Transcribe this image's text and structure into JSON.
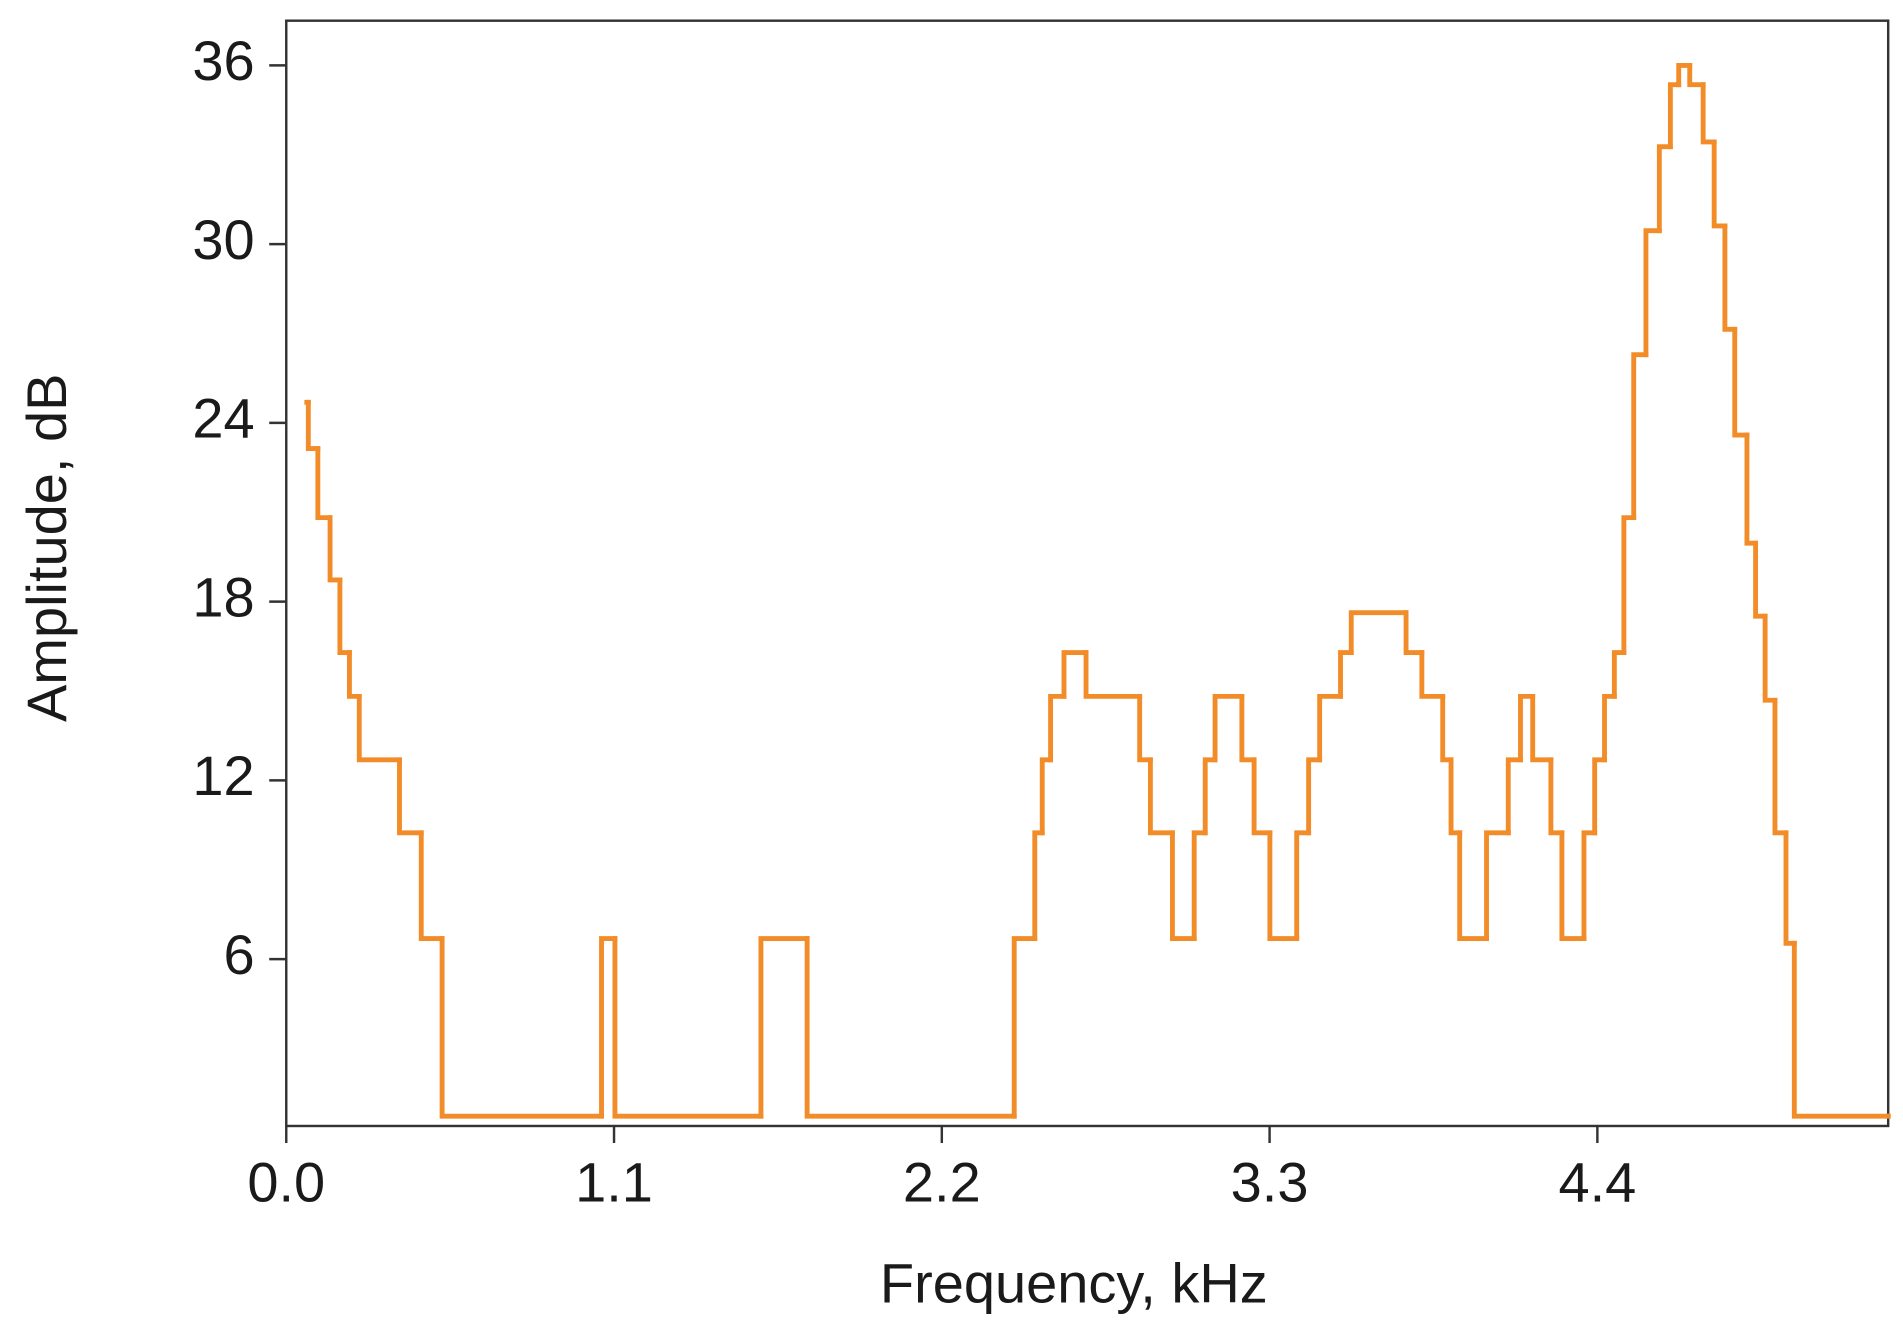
{
  "chart_data": {
    "type": "line",
    "step": "post",
    "x_label": "Frequency, kHz",
    "y_label": "Amplitude, dB",
    "color": "#f28c28",
    "xlim": [
      0,
      5.376
    ],
    "ylim": [
      0.4,
      37.5
    ],
    "xticks": [
      {
        "value": 0,
        "label": "0.0"
      },
      1.1,
      2.2,
      3.3,
      4.4
    ],
    "yticks": [
      6,
      12,
      18,
      24,
      30,
      36
    ],
    "x": [
      0.069,
      0.074,
      0.106,
      0.147,
      0.18,
      0.212,
      0.245,
      0.38,
      0.453,
      0.523,
      1.058,
      1.103,
      1.593,
      1.748,
      2.443,
      2.512,
      2.537,
      2.565,
      2.61,
      2.684,
      2.864,
      2.9,
      2.974,
      3.047,
      3.084,
      3.117,
      3.207,
      3.248,
      3.301,
      3.391,
      3.431,
      3.468,
      3.538,
      3.574,
      3.758,
      3.811,
      3.881,
      3.909,
      3.938,
      4.028,
      4.101,
      4.142,
      4.183,
      4.244,
      4.281,
      4.355,
      4.391,
      4.424,
      4.457,
      4.489,
      4.522,
      4.563,
      4.608,
      4.645,
      4.673,
      4.71,
      4.755,
      4.792,
      4.828,
      4.861,
      4.902,
      4.931,
      4.963,
      4.996,
      5.033,
      5.061,
      5.376
    ],
    "values": [
      24.69,
      23.14,
      20.82,
      18.73,
      16.29,
      14.82,
      12.69,
      10.24,
      6.69,
      0.73,
      6.69,
      0.73,
      6.69,
      0.73,
      6.69,
      10.24,
      12.69,
      14.82,
      16.29,
      14.82,
      12.69,
      10.24,
      6.69,
      10.24,
      12.69,
      14.82,
      12.69,
      10.24,
      6.69,
      10.24,
      12.69,
      14.82,
      16.29,
      17.63,
      16.29,
      14.82,
      12.69,
      10.24,
      6.69,
      10.24,
      12.69,
      14.82,
      12.69,
      10.24,
      6.69,
      10.24,
      12.69,
      14.82,
      16.29,
      20.82,
      26.29,
      30.45,
      33.27,
      35.35,
      36.0,
      35.35,
      33.43,
      30.61,
      27.14,
      23.59,
      19.96,
      17.51,
      14.69,
      10.24,
      6.53,
      0.73,
      0.73
    ]
  }
}
